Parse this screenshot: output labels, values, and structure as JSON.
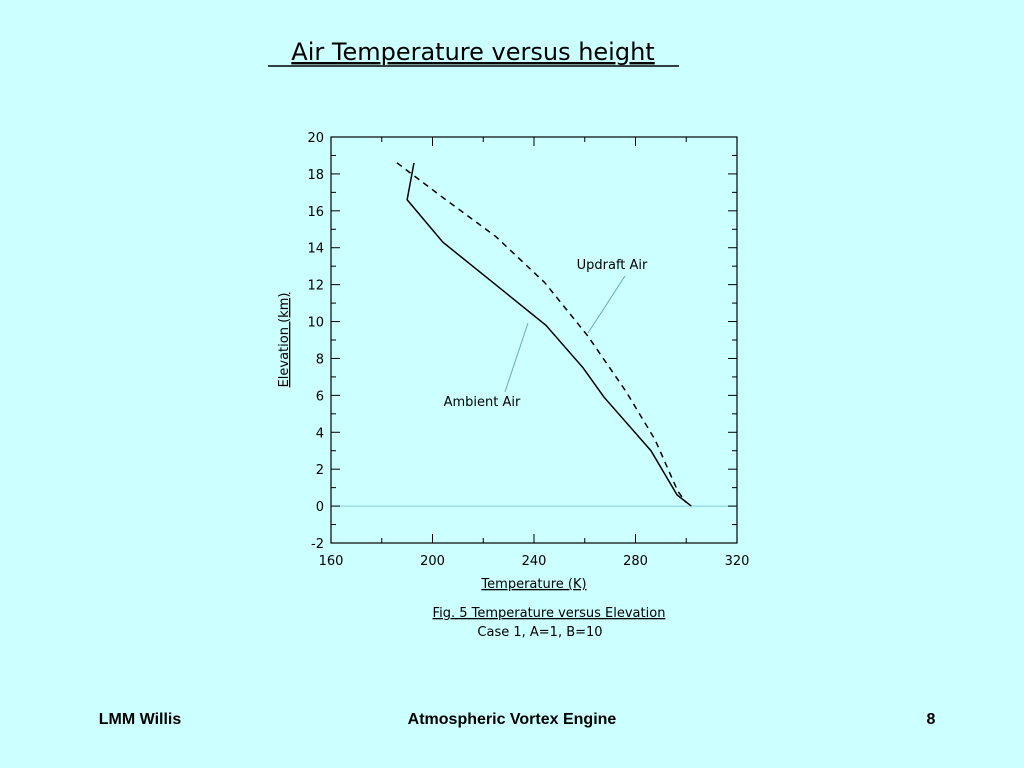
{
  "chart_data": {
    "type": "line",
    "title": "Air Temperature versus height",
    "xlabel": "Temperature (K)",
    "ylabel": "Elevation (km)",
    "caption": [
      "Fig. 5  Temperature versus Elevation",
      "Case 1, A=1, B=10"
    ],
    "xlim": [
      160,
      320
    ],
    "xticks": [
      160,
      200,
      240,
      280,
      320
    ],
    "ylim": [
      -2,
      20
    ],
    "yticks": [
      -2,
      0,
      2,
      4,
      6,
      8,
      10,
      12,
      14,
      16,
      18,
      20
    ],
    "series": [
      {
        "name": "Ambient Air",
        "color": "#000000",
        "style": "solid",
        "x": [
          302,
          296.4,
          286.1,
          267.6,
          259.3,
          244.7,
          204.1,
          190,
          192.7
        ],
        "values": [
          0,
          0.6,
          3.0,
          5.9,
          7.5,
          9.8,
          14.3,
          16.6,
          18.6
        ]
      },
      {
        "name": "Updraft Air",
        "color": "#000000",
        "style": "dashed",
        "x": [
          186,
          203.3,
          225,
          244.3,
          261.3,
          276.3,
          287.7,
          296.7,
          299.9
        ],
        "values": [
          18.6,
          16.8,
          14.6,
          12.1,
          9.2,
          6.2,
          3.6,
          0.8,
          0.2
        ]
      }
    ]
  },
  "footer": {
    "left": "LMM Willis",
    "center": "Atmospheric Vortex Engine",
    "right": "8"
  }
}
